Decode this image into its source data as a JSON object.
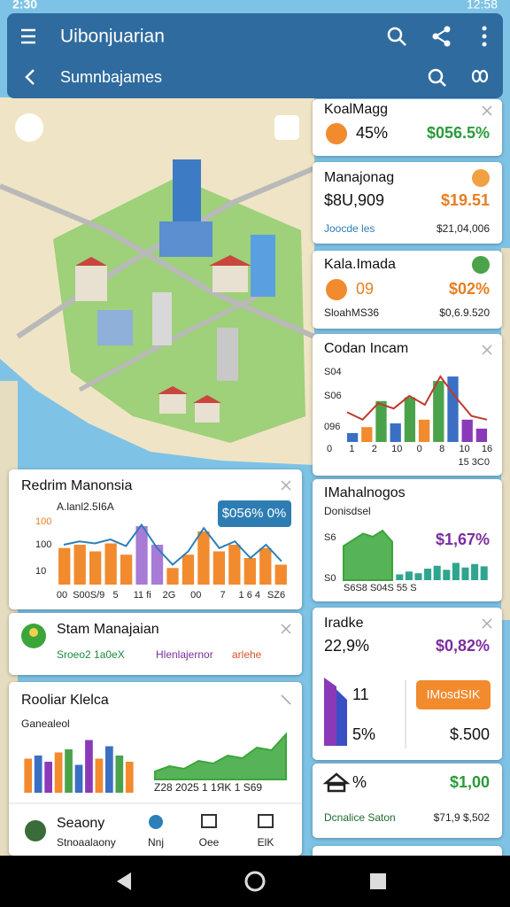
{
  "status_bar": {
    "time": "2:30",
    "clock": "12:58"
  },
  "app_bar": {
    "title": "Uibonjuarian"
  },
  "sub_bar": {
    "title": "Sumnbajames"
  },
  "right_cards": {
    "koal": {
      "title": "KoalMagg",
      "left": "45%",
      "right": "$056.5%"
    },
    "mana": {
      "title": "Manajonag",
      "left": "$8U,909",
      "right": "$19.51",
      "foot_left": "Joocde les",
      "foot_right": "$21,04,006"
    },
    "kala": {
      "title": "Kala.Imada",
      "left": "09",
      "right": "$02%",
      "foot_left": "SloahMS36",
      "foot_right": "$0,6.9.520"
    },
    "codan": {
      "title": "Codan Incam",
      "y_labels": [
        "S04",
        "S06",
        "096"
      ],
      "x_labels": [
        "0",
        "1",
        "2",
        "10",
        "0",
        "8",
        "10",
        "16"
      ],
      "foot": "15 3C0"
    },
    "mahal": {
      "title": "IMahalnogos",
      "subtitle": "Donisdsel",
      "value": "$1,67%",
      "y_labels": [
        "S6",
        "S0"
      ],
      "x_label": "S6S8 S04S 55 S"
    },
    "irad": {
      "title": "Iradke",
      "left": "22,9%",
      "right": "$0,82%",
      "count": "11",
      "percent": "5%",
      "button": "IMosdSIK",
      "amount": "$.500"
    },
    "house": {
      "left": "%",
      "right": "$1,00",
      "foot_left": "Dcnalice Saton",
      "foot_right": "$71,9 $,502"
    }
  },
  "left_cards": {
    "redrim": {
      "title": "Redrim Manonsia",
      "subtitle": "A.lanl2.5I6A",
      "badge": "$056% 0%",
      "y_labels": [
        "100",
        "100",
        "10"
      ],
      "x_labels": [
        "00",
        "S00S/9",
        "5",
        "11 fi",
        "2G",
        "00",
        "7",
        "1 6 4",
        "SZ6"
      ]
    },
    "stam": {
      "title": "Stam Manajaian",
      "tag1": "Sroeo2 1a0eX",
      "tag2": "Hlenlajernor",
      "tag3": "arlehe"
    },
    "rooliar": {
      "title": "Rooliar Klelca",
      "subtitle": "Ganealeol",
      "x_label": "Z28 2025 1 1ЯK 1 S69",
      "footer_title": "Seaony",
      "footer_subtitle": "Stnoaalaony",
      "tab1": "Nnj",
      "tab2": "Oee",
      "tab3": "ElK"
    }
  },
  "charts": {
    "codan_bars": {
      "ylim": [
        0,
        100
      ],
      "values": [
        12,
        20,
        55,
        25,
        60,
        30,
        82,
        88,
        30,
        18
      ],
      "colors": [
        "#3b6fc4",
        "#f28a2e",
        "#4aa34a",
        "#3b6fc4",
        "#4aa34a",
        "#f28a2e",
        "#4aa34a",
        "#3b6fc4",
        "#8a3ab9",
        "#8a3ab9"
      ]
    },
    "codan_line": {
      "ylim": [
        0,
        100
      ],
      "color": "#c0392b",
      "values": [
        40,
        30,
        52,
        45,
        62,
        50,
        88,
        60,
        35,
        30
      ]
    },
    "redrim_bars": {
      "ylim": [
        0,
        100
      ],
      "values": [
        55,
        60,
        50,
        62,
        45,
        88,
        60,
        25,
        45,
        80,
        50,
        60,
        40,
        55,
        30
      ],
      "colors": [
        "#f28a2e",
        "#f28a2e",
        "#f28a2e",
        "#f28a2e",
        "#f28a2e",
        "#a77bd6",
        "#a77bd6",
        "#f28a2e",
        "#f28a2e",
        "#f28a2e",
        "#f28a2e",
        "#f28a2e",
        "#f28a2e",
        "#f28a2e",
        "#f28a2e"
      ]
    },
    "redrim_line": {
      "ylim": [
        0,
        100
      ],
      "color": "#2c7fb8",
      "values": [
        60,
        65,
        62,
        68,
        58,
        90,
        55,
        30,
        50,
        85,
        55,
        65,
        40,
        60,
        35
      ]
    },
    "mahal_area": {
      "ylim": [
        0,
        100
      ],
      "color": "#3aa63a",
      "values": [
        55,
        65,
        75,
        70,
        80,
        62
      ]
    },
    "mahal_bars": {
      "ylim": [
        0,
        100
      ],
      "values": [
        10,
        15,
        12,
        20,
        25,
        18,
        30,
        22,
        28,
        24
      ],
      "colors": [
        "#2fa58f",
        "#2fa58f",
        "#2fa58f",
        "#2fa58f",
        "#2fa58f",
        "#2fa58f",
        "#2fa58f",
        "#2fa58f",
        "#2fa58f",
        "#2fa58f"
      ]
    },
    "rooliar_bars": {
      "ylim": [
        0,
        100
      ],
      "values": [
        55,
        60,
        50,
        65,
        70,
        45,
        85,
        55,
        75,
        60,
        50
      ],
      "colors": [
        "#f28a2e",
        "#3b6fc4",
        "#8a3ab9",
        "#f28a2e",
        "#4aa34a",
        "#3b6fc4",
        "#8a3ab9",
        "#f28a2e",
        "#3b6fc4",
        "#4aa34a",
        "#f28a2e"
      ]
    },
    "rooliar_line": {
      "ylim": [
        0,
        100
      ],
      "color": "#3aa63a",
      "values": [
        15,
        25,
        20,
        35,
        30,
        45,
        40,
        60,
        55,
        85
      ]
    }
  }
}
